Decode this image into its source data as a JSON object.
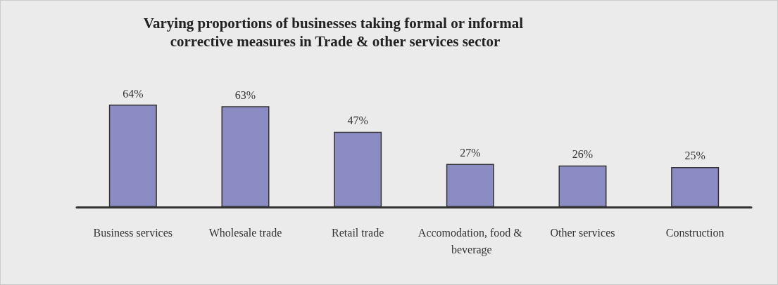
{
  "chart_data": {
    "type": "bar",
    "title": "Varying proportions of businesses taking formal or informal corrective measures in Trade & other services sector",
    "categories": [
      "Business services",
      "Wholesale trade",
      "Retail trade",
      "Accomodation, food & beverage",
      "Other services",
      "Construction"
    ],
    "values": [
      64,
      63,
      47,
      27,
      26,
      25
    ],
    "value_labels": [
      "64%",
      "63%",
      "47%",
      "27%",
      "26%",
      "25%"
    ],
    "color": "#8c8cc4"
  }
}
